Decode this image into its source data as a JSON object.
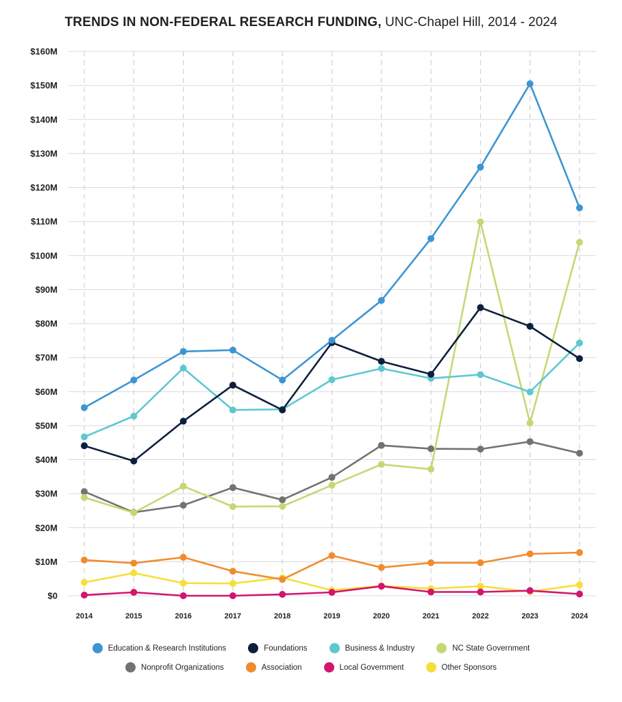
{
  "title_main": "TRENDS IN NON-FEDERAL RESEARCH FUNDING,",
  "title_sub": "UNC-Chapel Hill, 2014 - 2024",
  "chart_data": {
    "type": "line",
    "title": "TRENDS IN NON-FEDERAL RESEARCH FUNDING, UNC-Chapel Hill, 2014 - 2024",
    "x": [
      "2014",
      "2015",
      "2016",
      "2017",
      "2018",
      "2019",
      "2020",
      "2021",
      "2022",
      "2023",
      "2024"
    ],
    "ylim": [
      0,
      160
    ],
    "yticks": [
      0,
      10,
      20,
      30,
      40,
      50,
      60,
      70,
      80,
      90,
      100,
      110,
      120,
      130,
      140,
      150,
      160
    ],
    "ytick_labels": [
      "$0",
      "$10M",
      "$20M",
      "$30M",
      "$40M",
      "$50M",
      "$60M",
      "$70M",
      "$80M",
      "$90M",
      "$100M",
      "$110M",
      "$120M",
      "$130M",
      "$140M",
      "$150M",
      "$160M"
    ],
    "grid": true,
    "legend_position": "bottom",
    "series": [
      {
        "name": "Education & Research Institutions",
        "color": "#3d95d1",
        "values": [
          55.3,
          63.4,
          71.8,
          72.2,
          63.4,
          75.1,
          86.8,
          105.0,
          126.0,
          150.5,
          114.0
        ]
      },
      {
        "name": "Foundations",
        "color": "#0d1f3c",
        "values": [
          44.1,
          39.6,
          51.3,
          61.9,
          54.6,
          74.4,
          68.9,
          65.1,
          84.7,
          79.2,
          69.7
        ]
      },
      {
        "name": "Business & Industry",
        "color": "#5dc8d0",
        "values": [
          46.7,
          52.8,
          66.9,
          54.6,
          54.8,
          63.5,
          66.8,
          63.9,
          65.0,
          59.9,
          74.3
        ]
      },
      {
        "name": "NC State Government",
        "color": "#c2d974",
        "values": [
          28.9,
          24.4,
          32.2,
          26.2,
          26.3,
          32.5,
          38.6,
          37.2,
          109.9,
          50.8,
          103.9
        ]
      },
      {
        "name": "Nonprofit Organizations",
        "color": "#727272",
        "values": [
          30.6,
          24.5,
          26.6,
          31.8,
          28.2,
          34.8,
          44.2,
          43.2,
          43.1,
          45.3,
          41.9
        ]
      },
      {
        "name": "Association",
        "color": "#f08c2e",
        "values": [
          10.5,
          9.6,
          11.3,
          7.2,
          4.8,
          11.8,
          8.3,
          9.7,
          9.7,
          12.3,
          12.7
        ]
      },
      {
        "name": "Local Government",
        "color": "#d4146d",
        "values": [
          0.2,
          1.0,
          0.0,
          0.0,
          0.4,
          1.0,
          2.8,
          1.1,
          1.1,
          1.5,
          0.5
        ]
      },
      {
        "name": "Other Sponsors",
        "color": "#f6df3b",
        "values": [
          3.9,
          6.7,
          3.7,
          3.6,
          5.3,
          1.6,
          2.9,
          2.1,
          2.8,
          1.2,
          3.2
        ]
      }
    ]
  }
}
